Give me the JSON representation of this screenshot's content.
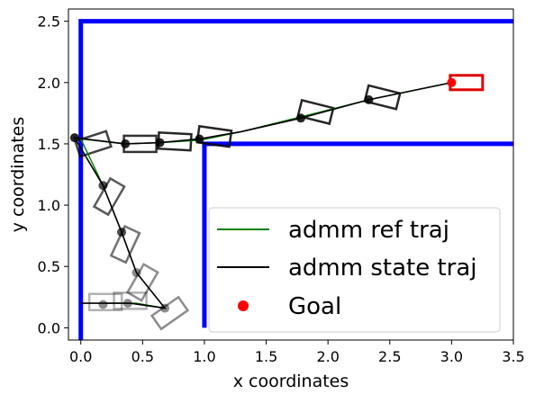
{
  "chart_data": {
    "type": "line",
    "xlabel": "x coordinates",
    "ylabel": "y coordinates",
    "xlim": [
      -0.1,
      3.5
    ],
    "ylim": [
      -0.1,
      2.6
    ],
    "xticks": [
      0.0,
      0.5,
      1.0,
      1.5,
      2.0,
      2.5,
      3.0,
      3.5
    ],
    "yticks": [
      0.0,
      0.5,
      1.0,
      1.5,
      2.0,
      2.5
    ],
    "xtick_labels": [
      "0.0",
      "0.5",
      "1.0",
      "1.5",
      "2.0",
      "2.5",
      "3.0",
      "3.5"
    ],
    "ytick_labels": [
      "0.0",
      "0.5",
      "1.0",
      "1.5",
      "2.0",
      "2.5"
    ],
    "grid": false,
    "legend_position": "lower-right",
    "walls": [
      {
        "x": [
          0.0,
          0.0,
          3.5
        ],
        "y": [
          -0.1,
          2.5,
          2.5
        ]
      },
      {
        "x": [
          1.0,
          1.0,
          3.5
        ],
        "y": [
          0.0,
          1.5,
          1.5
        ]
      }
    ],
    "series": [
      {
        "name": "admm ref traj",
        "color": "#008000",
        "x": [
          0.2,
          0.45,
          0.68,
          0.45,
          0.33,
          0.18,
          0.0,
          0.35,
          0.65,
          0.97,
          1.3,
          1.78,
          2.33,
          3.0
        ],
        "y": [
          0.2,
          0.2,
          0.16,
          0.45,
          0.78,
          1.16,
          1.54,
          1.5,
          1.51,
          1.53,
          1.6,
          1.72,
          1.86,
          2.0
        ]
      },
      {
        "name": "admm state traj",
        "color": "#000000",
        "x": [
          0.0,
          0.2,
          0.4,
          0.68,
          0.45,
          0.33,
          0.18,
          -0.05,
          0.36,
          0.64,
          0.96,
          1.3,
          1.78,
          2.33,
          3.0
        ],
        "y": [
          0.2,
          0.2,
          0.2,
          0.16,
          0.45,
          0.78,
          1.16,
          1.55,
          1.5,
          1.51,
          1.54,
          1.6,
          1.71,
          1.86,
          2.0
        ]
      }
    ],
    "state_points": {
      "x": [
        0.18,
        0.38,
        0.68,
        0.45,
        0.33,
        0.18,
        -0.05,
        0.36,
        0.64,
        0.96,
        1.78,
        2.33
      ],
      "y": [
        0.19,
        0.2,
        0.16,
        0.45,
        0.78,
        1.16,
        1.55,
        1.5,
        1.51,
        1.54,
        1.71,
        1.86
      ]
    },
    "vehicle_boxes": [
      {
        "x": 0.2,
        "y": 0.21,
        "angle": 0,
        "opacity": 0.3
      },
      {
        "x": 0.4,
        "y": 0.22,
        "angle": 0,
        "opacity": 0.3
      },
      {
        "x": 0.72,
        "y": 0.12,
        "angle": -35,
        "opacity": 0.45
      },
      {
        "x": 0.5,
        "y": 0.37,
        "angle": -60,
        "opacity": 0.45
      },
      {
        "x": 0.36,
        "y": 0.68,
        "angle": -65,
        "opacity": 0.55
      },
      {
        "x": 0.23,
        "y": 1.07,
        "angle": -60,
        "opacity": 0.65
      },
      {
        "x": 0.1,
        "y": 1.5,
        "angle": -18,
        "opacity": 0.75
      },
      {
        "x": 0.48,
        "y": 1.5,
        "angle": 0,
        "opacity": 0.8
      },
      {
        "x": 0.76,
        "y": 1.52,
        "angle": 3,
        "opacity": 0.85
      },
      {
        "x": 1.08,
        "y": 1.56,
        "angle": 8,
        "opacity": 0.85
      },
      {
        "x": 1.9,
        "y": 1.76,
        "angle": 14,
        "opacity": 0.85
      },
      {
        "x": 2.44,
        "y": 1.88,
        "angle": 14,
        "opacity": 0.85
      }
    ],
    "goal": {
      "name": "Goal",
      "x": 3.0,
      "y": 2.0,
      "color": "#ff0000"
    },
    "goal_box": {
      "x": 3.12,
      "y": 2.0,
      "color": "#e00000"
    }
  }
}
